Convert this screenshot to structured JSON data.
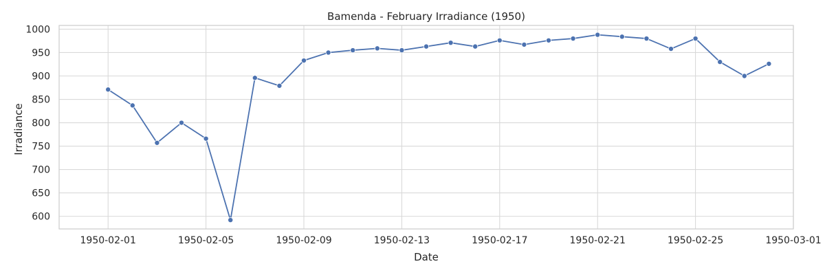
{
  "chart_data": {
    "type": "line",
    "title": "Bamenda - February Irradiance (1950)",
    "xlabel": "Date",
    "ylabel": "Irradiance",
    "xlim": [
      "1950-01-30",
      "1950-03-01"
    ],
    "ylim": [
      573,
      1008
    ],
    "x_ticks": [
      "1950-02-01",
      "1950-02-05",
      "1950-02-09",
      "1950-02-13",
      "1950-02-17",
      "1950-02-21",
      "1950-02-25",
      "1950-03-01"
    ],
    "y_ticks": [
      600,
      650,
      700,
      750,
      800,
      850,
      900,
      950,
      1000
    ],
    "grid": true,
    "colors": {
      "line": "#4c72b0",
      "grid": "#d9d9d9",
      "axes_edge": "#cccccc"
    },
    "series": [
      {
        "x": [
          "1950-02-01",
          "1950-02-02",
          "1950-02-03",
          "1950-02-04",
          "1950-02-05",
          "1950-02-06",
          "1950-02-07",
          "1950-02-08",
          "1950-02-09",
          "1950-02-10",
          "1950-02-11",
          "1950-02-12",
          "1950-02-13",
          "1950-02-14",
          "1950-02-15",
          "1950-02-16",
          "1950-02-17",
          "1950-02-18",
          "1950-02-19",
          "1950-02-20",
          "1950-02-21",
          "1950-02-22",
          "1950-02-23",
          "1950-02-24",
          "1950-02-25",
          "1950-02-26",
          "1950-02-27",
          "1950-02-28"
        ],
        "values": [
          871,
          837,
          757,
          800,
          766,
          592,
          896,
          879,
          933,
          950,
          955,
          959,
          955,
          963,
          971,
          963,
          976,
          967,
          976,
          980,
          988,
          984,
          980,
          958,
          980,
          930,
          900,
          926
        ]
      }
    ]
  }
}
